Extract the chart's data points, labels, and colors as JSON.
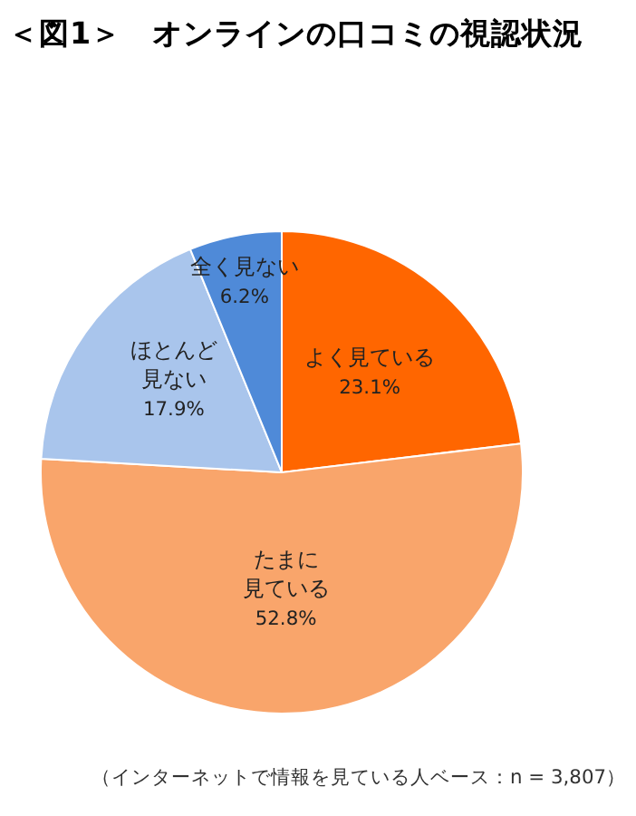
{
  "chart_data": {
    "type": "pie",
    "title": "＜図1＞　オンラインの口コミの視認状況",
    "categories": [
      "よく見ている",
      "たまに見ている",
      "ほとんど見ない",
      "全く見ない"
    ],
    "values": [
      23.1,
      52.8,
      17.9,
      6.2
    ],
    "colors": [
      "#ff6600",
      "#f9a56b",
      "#a9c5ec",
      "#4f8ad8"
    ],
    "value_labels": [
      "23.1%",
      "52.8%",
      "17.9%",
      "6.2%"
    ],
    "annotations": [
      "（インターネットで情報を見ている人ベース：n = 3,807）"
    ]
  }
}
